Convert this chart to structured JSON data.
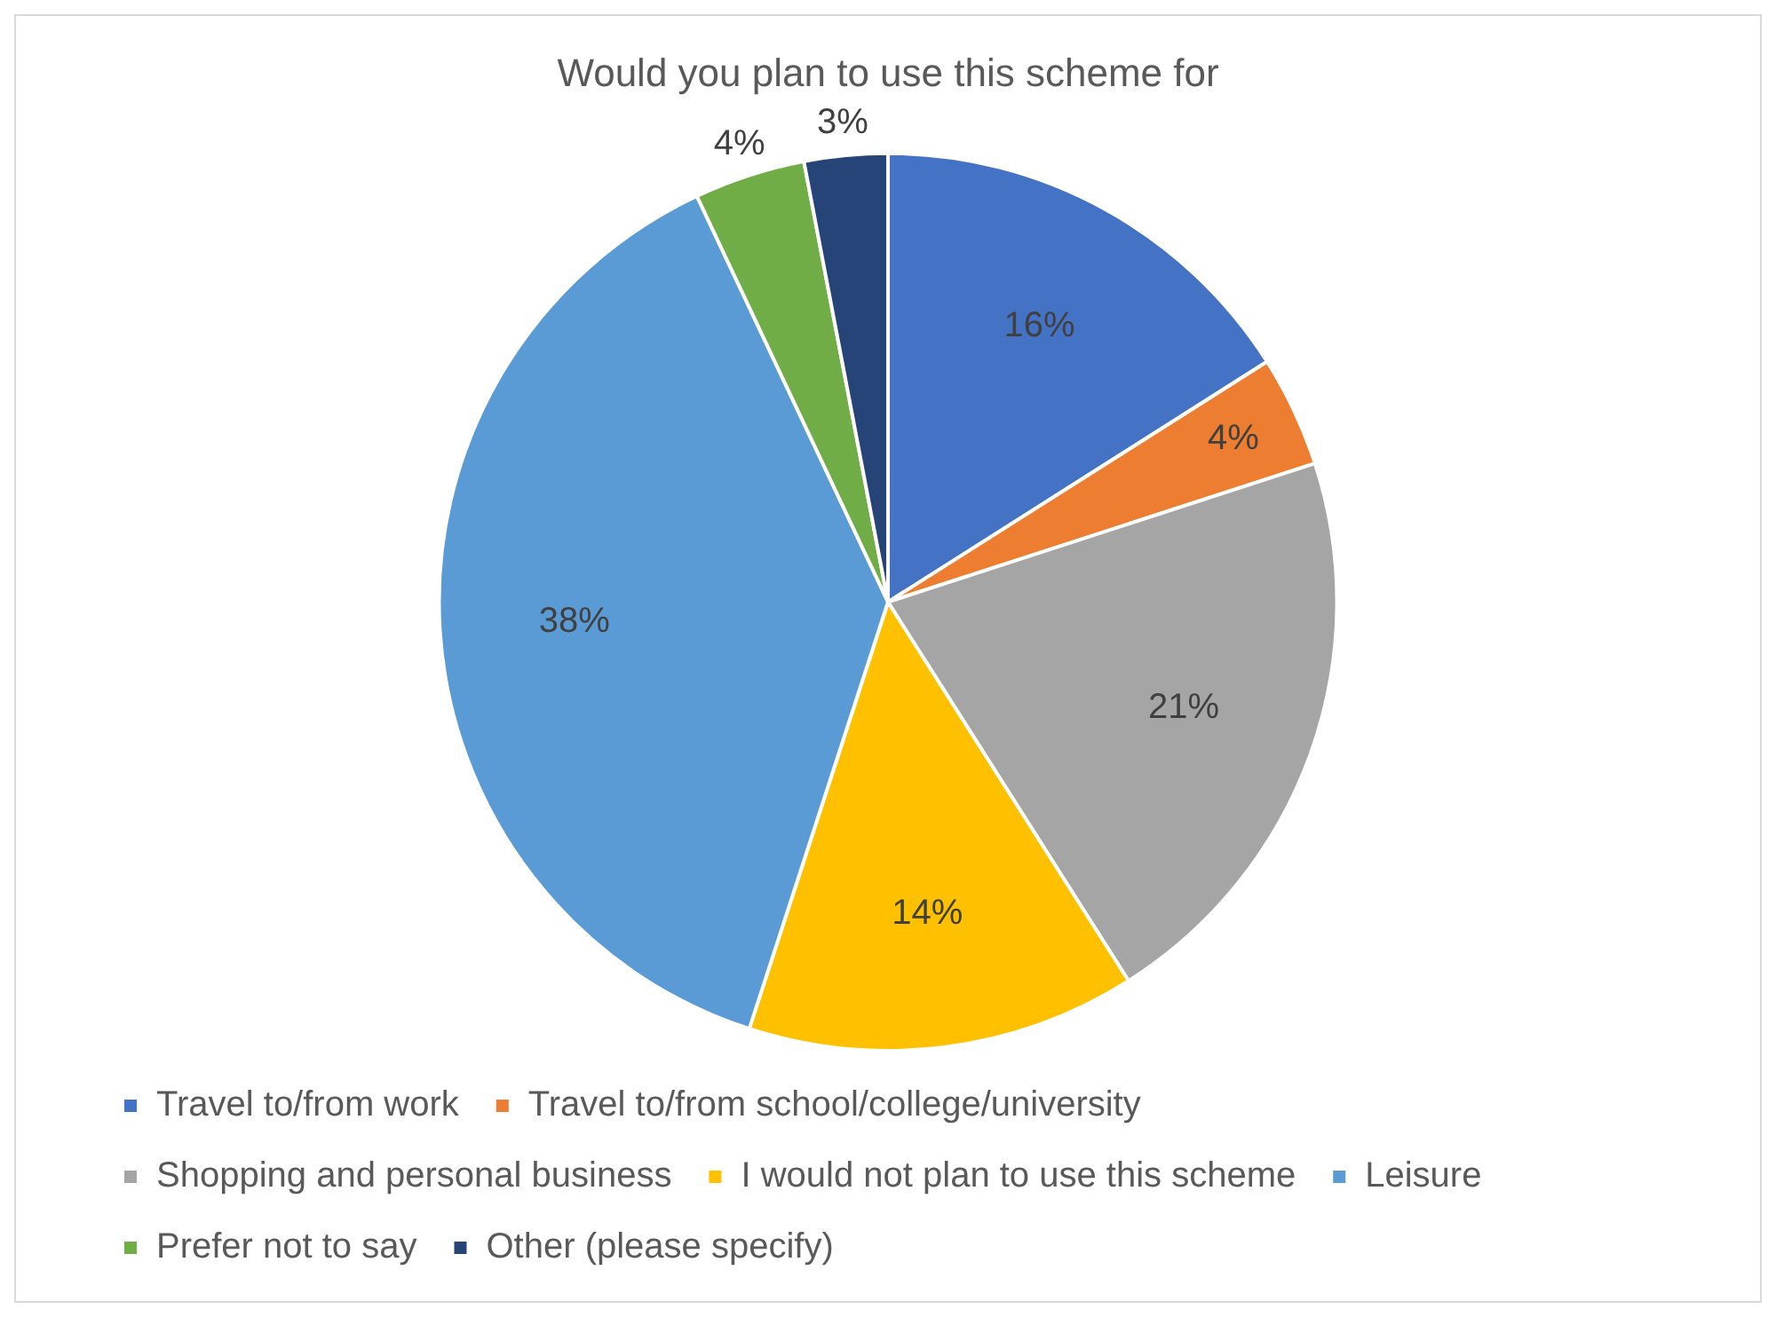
{
  "chart_data": {
    "type": "pie",
    "title": "Would you plan to use this scheme for",
    "categories": [
      "Travel to/from work",
      "Travel to/from school/college/university",
      "Shopping and personal business",
      "I would not plan to use this scheme",
      "Leisure",
      "Prefer not to say",
      "Other (please specify)"
    ],
    "values": [
      16,
      4,
      21,
      14,
      38,
      4,
      3
    ],
    "colors": [
      "#4472c4",
      "#ed7d31",
      "#a5a5a5",
      "#ffc000",
      "#5b9bd5",
      "#70ad47",
      "#264478"
    ],
    "value_labels": [
      "16%",
      "4%",
      "21%",
      "14%",
      "38%",
      "4%",
      "3%"
    ],
    "legend": "bottom"
  }
}
